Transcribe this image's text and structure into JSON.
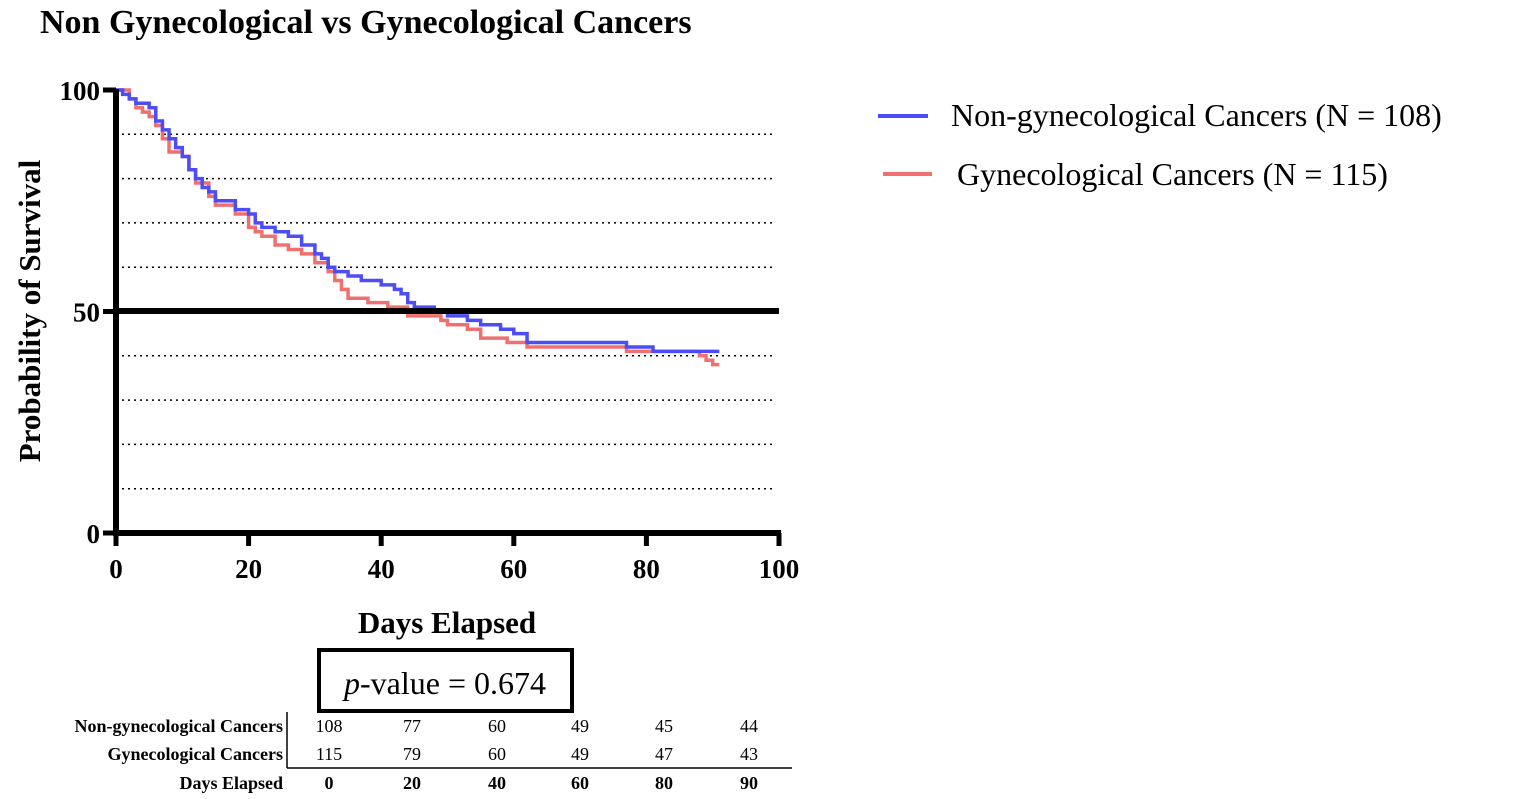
{
  "chart_data": {
    "type": "line",
    "title": "Non Gynecological vs Gynecological Cancers",
    "xlabel": "Days Elapsed",
    "ylabel": "Probability of Survival",
    "xlim": [
      0,
      100
    ],
    "ylim": [
      0,
      100
    ],
    "x_ticks": [
      "0",
      "20",
      "40",
      "60",
      "80",
      "100"
    ],
    "y_ticks": [
      "0",
      "50",
      "100"
    ],
    "grid": "dotted horizontal lines every 10; solid reference line at 50",
    "legend_position": "top-right",
    "series": [
      {
        "name": "Non-gynecological Cancers (N = 108)",
        "color": "#4d4df5",
        "x": [
          0,
          1,
          2,
          3,
          5,
          6,
          7,
          8,
          9,
          10,
          11,
          12,
          13,
          14,
          15,
          17,
          18,
          20,
          21,
          22,
          24,
          26,
          28,
          30,
          31,
          32,
          33,
          35,
          37,
          40,
          42,
          43,
          44,
          45,
          48,
          50,
          53,
          55,
          58,
          60,
          62,
          64,
          77,
          81,
          91
        ],
        "y": [
          100,
          99,
          98,
          97,
          96,
          93,
          91,
          89,
          87,
          85,
          82,
          80,
          78,
          77,
          75,
          75,
          73,
          72,
          70,
          69,
          68,
          67,
          65,
          63,
          62,
          60,
          59,
          58,
          57,
          56,
          55,
          54,
          52,
          51,
          50,
          49,
          48,
          47,
          46,
          45,
          43,
          43,
          42,
          41,
          41
        ]
      },
      {
        "name": "Gynecological Cancers (N = 115)",
        "color": "#f07070",
        "x": [
          0,
          2,
          3,
          4,
          5,
          6,
          7,
          8,
          10,
          11,
          12,
          14,
          15,
          18,
          20,
          21,
          22,
          24,
          26,
          28,
          30,
          32,
          33,
          34,
          35,
          38,
          41,
          44,
          49,
          50,
          53,
          55,
          59,
          62,
          77,
          81,
          88,
          89,
          90,
          91
        ],
        "y": [
          100,
          98,
          96,
          95,
          94,
          92,
          89,
          86,
          85,
          82,
          79,
          76,
          74,
          72,
          69,
          68,
          67,
          65,
          64,
          63,
          61,
          59,
          57,
          55,
          53,
          52,
          51,
          49,
          48,
          47,
          46,
          44,
          43,
          42,
          41,
          41,
          40,
          39,
          38,
          38
        ]
      }
    ],
    "annotation": {
      "p_label": "p",
      "p_rest": "-value = 0.674"
    },
    "risk_table": {
      "rows": [
        {
          "label": "Non-gynecological Cancers",
          "values": [
            "108",
            "77",
            "60",
            "49",
            "45",
            "44"
          ]
        },
        {
          "label": "Gynecological Cancers",
          "values": [
            "115",
            "79",
            "60",
            "49",
            "47",
            "43"
          ]
        }
      ],
      "footer_label": "Days Elapsed",
      "columns": [
        "0",
        "20",
        "40",
        "60",
        "80",
        "90"
      ]
    }
  }
}
